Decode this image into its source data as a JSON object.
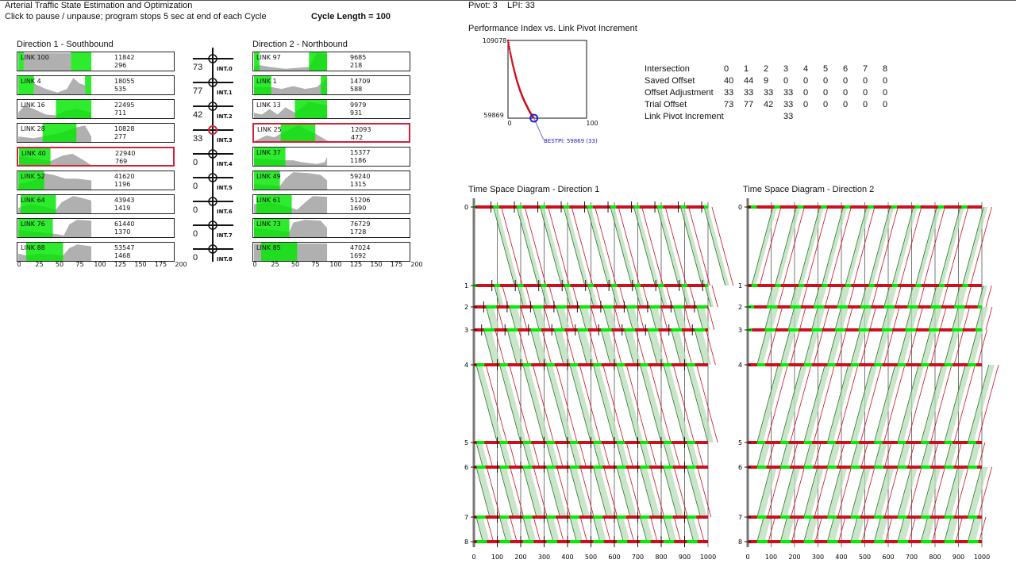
{
  "header": {
    "title": "Arterial Traffic State Estimation and Optimization",
    "instructions": "Click to pause / unpause;  program stops 5 sec at end of each Cycle",
    "cycle_length": "Cycle Length = 100",
    "pivot": "Pivot: 3",
    "lpi": "LPI: 33"
  },
  "colors": {
    "green": "#00ee00",
    "red": "#cc1020",
    "gray": "#b0b0b0",
    "band": "#b8dcb8",
    "selected": "#d0203a",
    "best": "#2020c0"
  },
  "direction1": {
    "title": "Direction 1 - Southbound",
    "axis": [
      "0",
      "25",
      "50",
      "75",
      "100",
      "125",
      "150",
      "175",
      "200"
    ],
    "links": [
      {
        "name": "LINK 100",
        "v1": "11842",
        "v2": "296",
        "selected": false,
        "green": [
          [
            0,
            7
          ],
          [
            67,
            93
          ]
        ],
        "profile": [
          [
            7,
            0.95
          ],
          [
            67,
            0.95
          ]
        ]
      },
      {
        "name": "LINK 4",
        "v1": "18055",
        "v2": "535",
        "selected": false,
        "green": [
          [
            0,
            20
          ],
          [
            85,
            93
          ]
        ],
        "profile": [
          [
            20,
            0.6
          ],
          [
            35,
            0.3
          ],
          [
            50,
            0.1
          ],
          [
            62,
            0.3
          ],
          [
            70,
            0.9
          ],
          [
            78,
            0.6
          ],
          [
            85,
            0.5
          ]
        ]
      },
      {
        "name": "LINK 16",
        "v1": "22495",
        "v2": "711",
        "selected": false,
        "green": [
          [
            48,
            93
          ]
        ],
        "profile": [
          [
            0,
            0.3
          ],
          [
            8,
            0.7
          ],
          [
            20,
            0.5
          ],
          [
            35,
            0.2
          ],
          [
            48,
            0.15
          ],
          [
            60,
            0.4
          ],
          [
            75,
            0.5
          ],
          [
            93,
            0.3
          ]
        ]
      },
      {
        "name": "LINK 28",
        "v1": "10828",
        "v2": "277",
        "selected": false,
        "green": [
          [
            31,
            74
          ]
        ],
        "profile": [
          [
            0,
            0.3
          ],
          [
            20,
            0.2
          ],
          [
            31,
            0.3
          ],
          [
            55,
            0.5
          ],
          [
            74,
            0.8
          ],
          [
            85,
            0.9
          ],
          [
            93,
            0.3
          ]
        ]
      },
      {
        "name": "LINK 40",
        "v1": "22940",
        "v2": "769",
        "selected": true,
        "green": [
          [
            0,
            40
          ]
        ],
        "profile": [
          [
            0,
            0.6
          ],
          [
            40,
            0.3
          ],
          [
            55,
            0.6
          ],
          [
            68,
            0.7
          ],
          [
            80,
            0.4
          ],
          [
            93,
            0.05
          ]
        ]
      },
      {
        "name": "LINK 52",
        "v1": "41620",
        "v2": "1196",
        "selected": false,
        "green": [
          [
            0,
            33
          ]
        ],
        "profile": [
          [
            0,
            0.3
          ],
          [
            20,
            0.5
          ],
          [
            33,
            0.9
          ],
          [
            45,
            0.8
          ],
          [
            60,
            0.6
          ],
          [
            75,
            0.6
          ],
          [
            93,
            0.5
          ]
        ]
      },
      {
        "name": "LINK 64",
        "v1": "43943",
        "v2": "1419",
        "selected": false,
        "green": [
          [
            3,
            48
          ]
        ],
        "profile": [
          [
            0,
            0.3
          ],
          [
            15,
            0.5
          ],
          [
            30,
            0.4
          ],
          [
            48,
            0.2
          ],
          [
            55,
            0.6
          ],
          [
            70,
            0.95
          ],
          [
            85,
            0.8
          ],
          [
            93,
            0.7
          ]
        ]
      },
      {
        "name": "LINK 76",
        "v1": "61440",
        "v2": "1370",
        "selected": false,
        "green": [
          [
            0,
            44
          ]
        ],
        "profile": [
          [
            0,
            0.4
          ],
          [
            20,
            0.3
          ],
          [
            44,
            0.2
          ],
          [
            58,
            0.1
          ],
          [
            65,
            0.7
          ],
          [
            75,
            0.95
          ],
          [
            93,
            0.9
          ]
        ]
      },
      {
        "name": "LINK 88",
        "v1": "53547",
        "v2": "1468",
        "selected": false,
        "green": [
          [
            10,
            57
          ]
        ],
        "profile": [
          [
            0,
            0.4
          ],
          [
            10,
            0.3
          ],
          [
            30,
            0.4
          ],
          [
            57,
            0.3
          ],
          [
            65,
            0.7
          ],
          [
            75,
            0.9
          ],
          [
            93,
            0.8
          ]
        ]
      }
    ]
  },
  "direction2": {
    "title": "Direction 2 - Northbound",
    "axis": [
      "0",
      "25",
      "50",
      "75",
      "100",
      "125",
      "150",
      "175",
      "200"
    ],
    "links": [
      {
        "name": "LINK 97",
        "v1": "9685",
        "v2": "218",
        "selected": false,
        "green": [
          [
            0,
            7
          ],
          [
            70,
            93
          ]
        ],
        "profile": [
          [
            0,
            0.2
          ],
          [
            7,
            0.3
          ],
          [
            20,
            0.2
          ],
          [
            40,
            0.1
          ],
          [
            70,
            0.2
          ],
          [
            80,
            0.95
          ],
          [
            93,
            0.9
          ]
        ]
      },
      {
        "name": "LINK 1",
        "v1": "14709",
        "v2": "588",
        "selected": false,
        "green": [
          [
            0,
            22
          ],
          [
            85,
            93
          ]
        ],
        "profile": [
          [
            0,
            0.4
          ],
          [
            22,
            0.4
          ],
          [
            35,
            0.3
          ],
          [
            50,
            0.45
          ],
          [
            65,
            0.3
          ],
          [
            80,
            0.4
          ],
          [
            93,
            0.9
          ]
        ]
      },
      {
        "name": "LINK 13",
        "v1": "9979",
        "v2": "931",
        "selected": false,
        "green": [
          [
            52,
            93
          ]
        ],
        "profile": [
          [
            0,
            0.3
          ],
          [
            10,
            0.2
          ],
          [
            20,
            0.5
          ],
          [
            30,
            0.2
          ],
          [
            40,
            0.6
          ],
          [
            52,
            0.3
          ],
          [
            70,
            0.9
          ],
          [
            93,
            0.7
          ]
        ]
      },
      {
        "name": "LINK 25",
        "v1": "12093",
        "v2": "472",
        "selected": true,
        "green": [
          [
            33,
            77
          ]
        ],
        "profile": [
          [
            0,
            0.1
          ],
          [
            15,
            0.4
          ],
          [
            25,
            0.3
          ],
          [
            33,
            0.5
          ],
          [
            55,
            0.95
          ],
          [
            77,
            0.5
          ],
          [
            93,
            0.1
          ]
        ]
      },
      {
        "name": "LINK 37",
        "v1": "15377",
        "v2": "1186",
        "selected": false,
        "green": [
          [
            0,
            40
          ]
        ],
        "profile": [
          [
            0,
            0.4
          ],
          [
            40,
            0.3
          ],
          [
            50,
            0.3
          ],
          [
            60,
            0.2
          ],
          [
            80,
            0.1
          ],
          [
            90,
            0.2
          ],
          [
            93,
            0.5
          ]
        ]
      },
      {
        "name": "LINK 49",
        "v1": "59240",
        "v2": "1315",
        "selected": false,
        "green": [
          [
            0,
            33
          ]
        ],
        "profile": [
          [
            0,
            0.3
          ],
          [
            33,
            0.2
          ],
          [
            40,
            0.6
          ],
          [
            50,
            0.95
          ],
          [
            70,
            0.9
          ],
          [
            85,
            0.8
          ],
          [
            93,
            0.5
          ]
        ]
      },
      {
        "name": "LINK 61",
        "v1": "51206",
        "v2": "1690",
        "selected": false,
        "green": [
          [
            3,
            48
          ]
        ],
        "profile": [
          [
            0,
            0.5
          ],
          [
            20,
            0.6
          ],
          [
            40,
            0.4
          ],
          [
            55,
            0.2
          ],
          [
            65,
            0.6
          ],
          [
            75,
            0.95
          ],
          [
            93,
            0.9
          ]
        ]
      },
      {
        "name": "LINK 73",
        "v1": "76729",
        "v2": "1728",
        "selected": false,
        "green": [
          [
            0,
            45
          ]
        ],
        "profile": [
          [
            0,
            0.5
          ],
          [
            20,
            0.4
          ],
          [
            45,
            0.3
          ],
          [
            50,
            0.8
          ],
          [
            65,
            0.95
          ],
          [
            85,
            0.9
          ],
          [
            93,
            0.5
          ]
        ]
      },
      {
        "name": "LINK 85",
        "v1": "47024",
        "v2": "1692",
        "selected": false,
        "green": [
          [
            9,
            55
          ]
        ],
        "profile": [
          [
            0,
            0.95
          ],
          [
            93,
            0.95
          ]
        ]
      }
    ]
  },
  "intersections": [
    {
      "label": "INT.0",
      "offset": "73",
      "selected": false
    },
    {
      "label": "INT.1",
      "offset": "77",
      "selected": false
    },
    {
      "label": "INT.2",
      "offset": "42",
      "selected": false
    },
    {
      "label": "INT.3",
      "offset": "33",
      "selected": true
    },
    {
      "label": "INT.4",
      "offset": "0",
      "selected": false
    },
    {
      "label": "INT.5",
      "offset": "0",
      "selected": false
    },
    {
      "label": "INT.6",
      "offset": "0",
      "selected": false
    },
    {
      "label": "INT.7",
      "offset": "0",
      "selected": false
    },
    {
      "label": "INT.8",
      "offset": "0",
      "selected": false
    }
  ],
  "chart_data": [
    {
      "type": "line",
      "title": "Performance Index vs. Link Pivot Increment",
      "xlim": [
        0,
        100
      ],
      "ylim": [
        59869,
        109078
      ],
      "xticks": [
        "0",
        "100"
      ],
      "yticks": [
        "109078",
        "59869"
      ],
      "x": [
        0,
        3,
        6,
        9,
        12,
        15,
        18,
        21,
        24,
        27,
        30,
        33
      ],
      "y": [
        109078,
        101000,
        94000,
        88000,
        82500,
        78000,
        74000,
        70500,
        67500,
        64500,
        62000,
        59869
      ],
      "best": {
        "x": 33,
        "y": 59869,
        "label": "BESTPI: 59869 (33)"
      }
    },
    {
      "type": "diagram",
      "title": "Time Space Diagram - Direction 1",
      "xlim": [
        0,
        1000
      ],
      "xticks": [
        "0",
        "100",
        "200",
        "300",
        "400",
        "500",
        "600",
        "700",
        "800",
        "900",
        "1000"
      ],
      "ylabels": [
        "0",
        "1",
        "2",
        "3",
        "4",
        "5",
        "6",
        "7",
        "8"
      ]
    },
    {
      "type": "diagram",
      "title": "Time Space Diagram - Direction 2",
      "xlim": [
        0,
        1000
      ],
      "xticks": [
        "0",
        "100",
        "200",
        "300",
        "400",
        "500",
        "600",
        "700",
        "800",
        "900",
        "1000"
      ],
      "ylabels": [
        "0",
        "1",
        "2",
        "3",
        "4",
        "5",
        "6",
        "7",
        "8"
      ]
    }
  ],
  "offset_table": {
    "headers": [
      "Intersection",
      "0",
      "1",
      "2",
      "3",
      "4",
      "5",
      "6",
      "7",
      "8"
    ],
    "rows": [
      [
        "Saved Offset",
        "40",
        "44",
        "9",
        "0",
        "0",
        "0",
        "0",
        "0",
        "0"
      ],
      [
        "Offset Adjustment",
        "33",
        "33",
        "33",
        "33",
        "0",
        "0",
        "0",
        "0",
        "0"
      ],
      [
        "Trial Offset",
        "73",
        "77",
        "42",
        "33",
        "0",
        "0",
        "0",
        "0",
        "0"
      ],
      [
        "Link Pivot Increment",
        "",
        "",
        "",
        "33",
        "",
        "",
        "",
        "",
        ""
      ]
    ]
  }
}
